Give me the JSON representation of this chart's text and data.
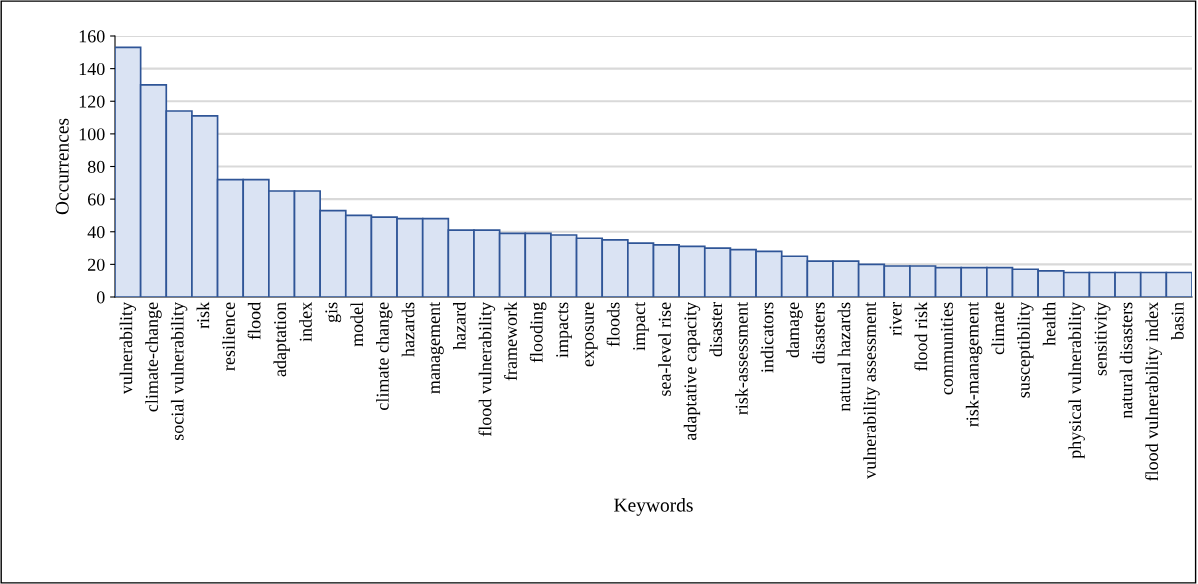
{
  "chart_data": {
    "type": "bar",
    "xlabel": "Keywords",
    "ylabel": "Occurrences",
    "categories": [
      "vulnerability",
      "climate-change",
      "social vulnerability",
      "risk",
      "resilience",
      "flood",
      "adaptation",
      "index",
      "gis",
      "model",
      "climate change",
      "hazards",
      "management",
      "hazard",
      "flood vulnerability",
      "framework",
      "flooding",
      "impacts",
      "exposure",
      "floods",
      "impact",
      "sea-level rise",
      "adaptative capacity",
      "disaster",
      "risk-assessment",
      "indicators",
      "damage",
      "disasters",
      "natural hazards",
      "vulnerability assessment",
      "river",
      "flood risk",
      "communities",
      "risk-management",
      "climate",
      "susceptibility",
      "health",
      "physical vulnerability",
      "sensitivity",
      "natural disasters",
      "flood vulnerability index",
      "basin"
    ],
    "values": [
      153,
      130,
      114,
      111,
      72,
      72,
      65,
      65,
      53,
      50,
      49,
      48,
      48,
      41,
      41,
      39,
      39,
      38,
      36,
      35,
      33,
      32,
      31,
      30,
      29,
      28,
      25,
      22,
      22,
      20,
      19,
      19,
      18,
      18,
      18,
      17,
      16,
      15,
      15,
      15,
      15,
      15
    ],
    "color": "#dae3f3",
    "ylim": [
      0,
      160
    ],
    "yticks": [
      0,
      20,
      40,
      60,
      80,
      100,
      120,
      140,
      160
    ],
    "grid": "y"
  }
}
